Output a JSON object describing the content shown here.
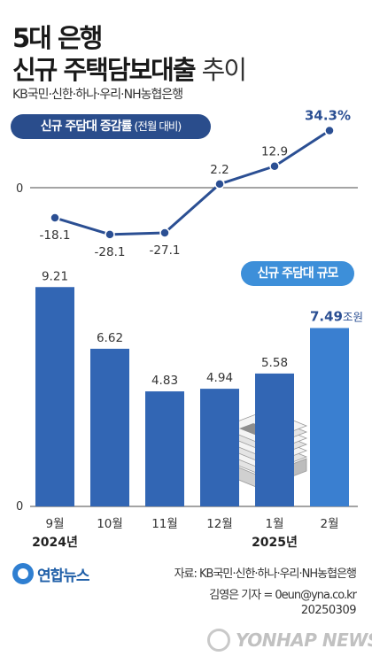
{
  "header": {
    "title_line1": "5대 은행",
    "title_line2_main": "신규 주택담보대출",
    "title_line2_sub": "추이",
    "banks": "KB국민·신한·하나·우리·NH농협은행"
  },
  "labels": {
    "rate_pill_main": "신규 주담대 증감률",
    "rate_pill_sub": "(전월 대비)",
    "size_pill": "신규 주담대 규모",
    "unit_suffix": "조원",
    "year_2024": "2024년",
    "year_2025": "2025년",
    "zero_rate": "0",
    "zero_size": "0"
  },
  "footer": {
    "source": "자료: KB국민·신한·하나·우리·NH농협은행",
    "byline": "김영은 기자 = 0eun@yna.co.kr",
    "date": "20250309",
    "logo": "연합뉴스",
    "watermark": "YONHAP NEWS"
  },
  "colors": {
    "bar_primary": "#3a7fd0",
    "bar_secondary": "#3266b4",
    "line": "#2b4f93",
    "label_highlight": "#2b4f93",
    "axis": "#4a4a4a"
  },
  "chart_data": [
    {
      "type": "bar",
      "title": "신규 주담대 규모",
      "unit": "조원",
      "categories": [
        "9월",
        "10월",
        "11월",
        "12월",
        "1월",
        "2월"
      ],
      "values": [
        9.21,
        6.62,
        4.83,
        4.94,
        5.58,
        7.49
      ],
      "value_labels": [
        "9.21",
        "6.62",
        "4.83",
        "4.94",
        "5.58",
        "7.49"
      ],
      "ylim": [
        0,
        10
      ],
      "year_groups": [
        {
          "label": "2024년",
          "categories": [
            "9월",
            "10월",
            "11월",
            "12월"
          ]
        },
        {
          "label": "2025년",
          "categories": [
            "1월",
            "2월"
          ]
        }
      ]
    },
    {
      "type": "line",
      "title": "신규 주담대 증감률 (전월 대비)",
      "unit": "%",
      "categories": [
        "9월",
        "10월",
        "11월",
        "12월",
        "1월",
        "2월"
      ],
      "values": [
        -18.1,
        -28.1,
        -27.1,
        2.2,
        12.9,
        34.3
      ],
      "value_labels": [
        "-18.1",
        "-28.1",
        "-27.1",
        "2.2",
        "12.9",
        "34.3%"
      ],
      "reference_line": 0
    }
  ]
}
